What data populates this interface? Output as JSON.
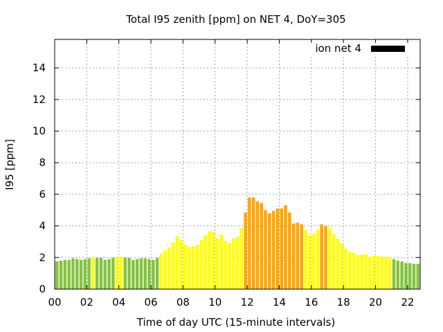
{
  "chart_data": {
    "type": "bar",
    "title": "Total I95 zenith [ppm] on NET 4, DoY=305",
    "xlabel": "Time of day UTC (15-minute intervals)",
    "ylabel": "I95 [ppm]",
    "xlim": [
      0,
      22.78
    ],
    "ylim": [
      0,
      15.8
    ],
    "grid": true,
    "legend": {
      "position": "top-right",
      "entries": [
        {
          "label": "ion net 4",
          "color": "#000000"
        }
      ]
    },
    "x_ticks": [
      {
        "v": 0,
        "label": "00"
      },
      {
        "v": 2,
        "label": "02"
      },
      {
        "v": 4,
        "label": "04"
      },
      {
        "v": 6,
        "label": "06"
      },
      {
        "v": 8,
        "label": "08"
      },
      {
        "v": 10,
        "label": "10"
      },
      {
        "v": 12,
        "label": "12"
      },
      {
        "v": 14,
        "label": "14"
      },
      {
        "v": 16,
        "label": "16"
      },
      {
        "v": 18,
        "label": "18"
      },
      {
        "v": 20,
        "label": "20"
      },
      {
        "v": 22,
        "label": "22"
      }
    ],
    "y_ticks": [
      {
        "v": 0,
        "label": "0"
      },
      {
        "v": 2,
        "label": "2"
      },
      {
        "v": 4,
        "label": "4"
      },
      {
        "v": 6,
        "label": "6"
      },
      {
        "v": 8,
        "label": "8"
      },
      {
        "v": 10,
        "label": "10"
      },
      {
        "v": 12,
        "label": "12"
      },
      {
        "v": 14,
        "label": "14"
      }
    ],
    "interval_hours": 0.25,
    "colors": {
      "green": "#84c341",
      "yellow": "#ffff00",
      "orange": "#ffa500"
    },
    "values": [
      1.75,
      1.8,
      1.85,
      1.85,
      1.95,
      1.9,
      1.85,
      1.9,
      1.95,
      2.0,
      1.98,
      1.98,
      1.85,
      1.9,
      1.98,
      2.05,
      2.05,
      2.0,
      1.98,
      1.85,
      1.9,
      1.95,
      1.95,
      1.9,
      1.85,
      1.98,
      2.25,
      2.45,
      2.65,
      2.95,
      3.35,
      3.1,
      2.8,
      2.65,
      2.7,
      2.8,
      3.1,
      3.4,
      3.65,
      3.65,
      3.2,
      3.45,
      3.05,
      2.9,
      3.2,
      3.3,
      3.85,
      4.85,
      5.8,
      5.8,
      5.55,
      5.45,
      5.0,
      4.8,
      4.95,
      5.1,
      5.1,
      5.3,
      4.85,
      4.15,
      4.2,
      4.1,
      3.75,
      3.4,
      3.5,
      3.75,
      4.1,
      4.0,
      3.9,
      3.5,
      3.2,
      2.9,
      2.55,
      2.35,
      2.3,
      2.15,
      2.2,
      2.2,
      2.05,
      2.1,
      2.1,
      2.05,
      2.05,
      2.0,
      1.9,
      1.8,
      1.75,
      1.65,
      1.65,
      1.6,
      1.6
    ],
    "classes": [
      "g",
      "g",
      "g",
      "g",
      "g",
      "g",
      "g",
      "g",
      "g",
      "y",
      "g",
      "g",
      "g",
      "g",
      "g",
      "y",
      "y",
      "g",
      "g",
      "g",
      "g",
      "g",
      "g",
      "g",
      "g",
      "g",
      "y",
      "y",
      "y",
      "y",
      "y",
      "y",
      "y",
      "y",
      "y",
      "y",
      "y",
      "y",
      "y",
      "y",
      "y",
      "y",
      "y",
      "y",
      "y",
      "y",
      "y",
      "o",
      "o",
      "o",
      "o",
      "o",
      "o",
      "o",
      "o",
      "o",
      "o",
      "o",
      "o",
      "o",
      "o",
      "o",
      "y",
      "y",
      "y",
      "y",
      "o",
      "o",
      "y",
      "y",
      "y",
      "y",
      "y",
      "y",
      "y",
      "y",
      "y",
      "y",
      "y",
      "y",
      "y",
      "y",
      "y",
      "y",
      "g",
      "g",
      "g",
      "g",
      "g",
      "g",
      "g"
    ]
  }
}
